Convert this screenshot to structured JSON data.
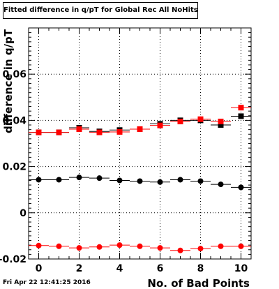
{
  "chart_data": {
    "type": "scatter",
    "title": "Fitted difference in q/pT for Global Rec All NoHits",
    "xlabel": "No. of Bad Points",
    "ylabel": "difference in q/pT",
    "xlim": [
      -0.5,
      10.5
    ],
    "ylim": [
      -0.02,
      0.08
    ],
    "x_ticks": [
      0,
      2,
      4,
      6,
      8,
      10
    ],
    "x_tick_labels": [
      "0",
      "2",
      "4",
      "6",
      "8",
      "10"
    ],
    "y_ticks": [
      -0.02,
      0,
      0.02,
      0.04,
      0.06
    ],
    "y_tick_labels": [
      "-0.02",
      "0",
      "0.02",
      "0.04",
      "0.06"
    ],
    "grid": true,
    "x": [
      0,
      1,
      2,
      3,
      4,
      5,
      6,
      7,
      8,
      9,
      10
    ],
    "series": [
      {
        "marker": "square",
        "color": "#000000",
        "values": [
          0.0348,
          0.0348,
          0.0368,
          0.0352,
          0.0358,
          0.0362,
          0.0385,
          0.04,
          0.04,
          0.038,
          0.0418
        ]
      },
      {
        "marker": "square",
        "color": "#ff0000",
        "values": [
          0.0348,
          0.0348,
          0.0362,
          0.0348,
          0.035,
          0.0362,
          0.0378,
          0.0395,
          0.0405,
          0.0395,
          0.0455
        ]
      },
      {
        "marker": "circle",
        "color": "#000000",
        "values": [
          0.0143,
          0.0143,
          0.0153,
          0.015,
          0.014,
          0.0137,
          0.0133,
          0.0143,
          0.0137,
          0.0123,
          0.011
        ]
      },
      {
        "marker": "circle",
        "color": "#ff0000",
        "values": [
          -0.0142,
          -0.0145,
          -0.0152,
          -0.0148,
          -0.014,
          -0.0145,
          -0.0152,
          -0.0163,
          -0.0155,
          -0.0145,
          -0.0145
        ]
      }
    ]
  },
  "footer": {
    "timestamp": "Fri Apr 22 12:41:25 2016"
  }
}
